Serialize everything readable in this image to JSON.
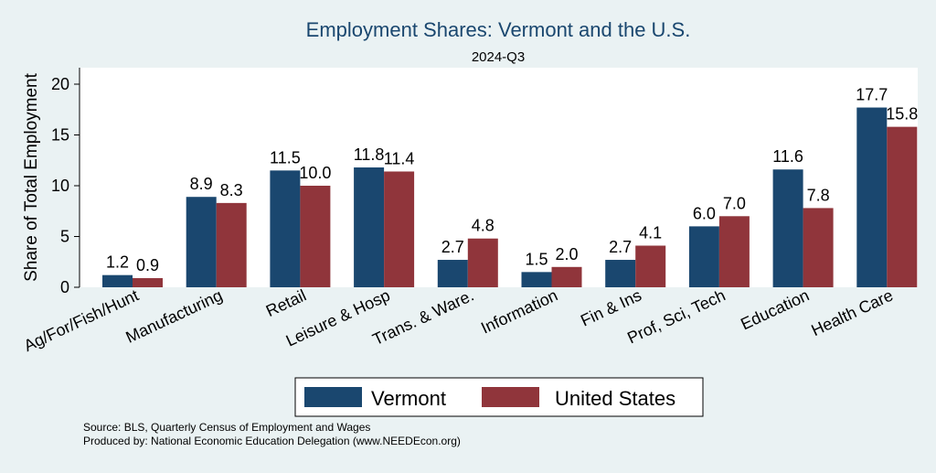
{
  "chart_data": {
    "type": "bar",
    "title": "Employment Shares: Vermont and the U.S.",
    "subtitle": "2024-Q3",
    "xlabel": "",
    "ylabel": "Share of Total Employment",
    "ylim": [
      0,
      21.5
    ],
    "yticks": [
      0,
      5,
      10,
      15,
      20
    ],
    "grid": false,
    "legend_position": "bottom",
    "categories": [
      "Ag/For/Fish/Hunt",
      "Manufacturing",
      "Retail",
      "Leisure & Hosp",
      "Trans. & Ware.",
      "Information",
      "Fin & Ins",
      "Prof, Sci, Tech",
      "Education",
      "Health Care"
    ],
    "series": [
      {
        "name": "Vermont",
        "color": "#1a476f",
        "values": [
          1.2,
          8.9,
          11.5,
          11.8,
          2.7,
          1.5,
          2.7,
          6.0,
          11.6,
          17.7
        ],
        "labels": [
          "1.2",
          "8.9",
          "11.5",
          "11.8",
          "2.7",
          "1.5",
          "2.7",
          "6.0",
          "11.6",
          "17.7"
        ]
      },
      {
        "name": "United States",
        "color": "#90353b",
        "values": [
          0.9,
          8.3,
          10.0,
          11.4,
          4.8,
          2.0,
          4.1,
          7.0,
          7.8,
          15.8
        ],
        "labels": [
          "0.9",
          "8.3",
          "10.0",
          "11.4",
          "4.8",
          "2.0",
          "4.1",
          "7.0",
          "7.8",
          "15.8"
        ]
      }
    ]
  },
  "footer": {
    "source": "Source: BLS, Quarterly Census of Employment and Wages",
    "produced_by": "Produced by: National Economic Education Delegation (www.NEEDEcon.org)"
  },
  "colors": {
    "background": "#eaf2f3",
    "plot_background": "#ffffff",
    "title": "#1a476f"
  }
}
